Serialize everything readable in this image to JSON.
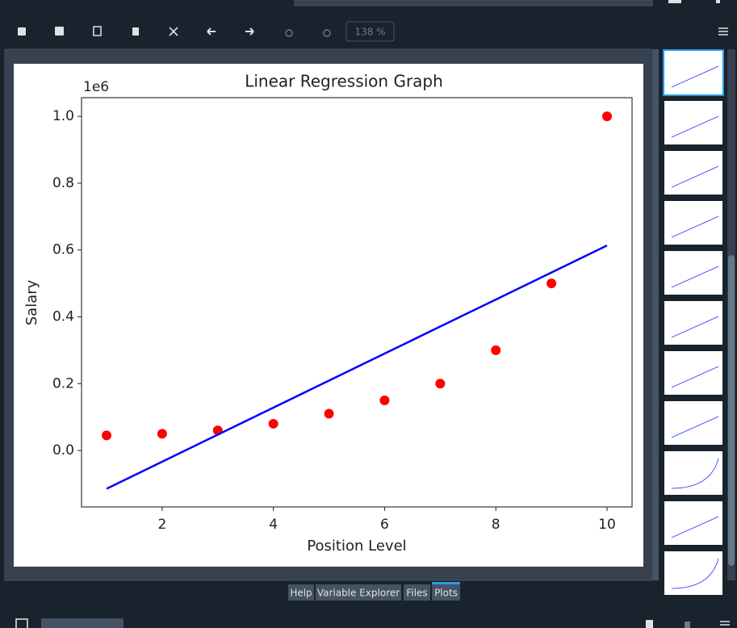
{
  "toolbar": {
    "zoom": "138 %"
  },
  "chart_data": {
    "type": "scatter",
    "title": "Linear Regression Graph",
    "x_label": "Position Level",
    "y_label": "Salary",
    "y_offset": "1e6",
    "x": [
      1,
      2,
      3,
      4,
      5,
      6,
      7,
      8,
      9,
      10
    ],
    "series": [
      {
        "type": "scatter",
        "color": "#ff0000",
        "values": [
          0.045,
          0.05,
          0.06,
          0.08,
          0.11,
          0.15,
          0.2,
          0.3,
          0.5,
          1.0
        ]
      },
      {
        "type": "line",
        "color": "#0000ff",
        "values": [
          -0.1145,
          -0.0336,
          0.0473,
          0.1282,
          0.2091,
          0.29,
          0.3709,
          0.4518,
          0.5327,
          0.6135
        ]
      }
    ],
    "xlim": [
      0.55,
      10.45
    ],
    "ylim": [
      -0.169,
      1.056
    ],
    "xticks": [
      2,
      4,
      6,
      8,
      10
    ],
    "yticks": [
      {
        "value": 0,
        "label": "0.0"
      },
      0.2,
      0.4,
      0.6,
      0.8,
      {
        "value": 1,
        "label": "1.0"
      }
    ],
    "grid": false
  },
  "tabs": [
    "Help",
    "Variable Explorer",
    "Files",
    "Plots"
  ]
}
